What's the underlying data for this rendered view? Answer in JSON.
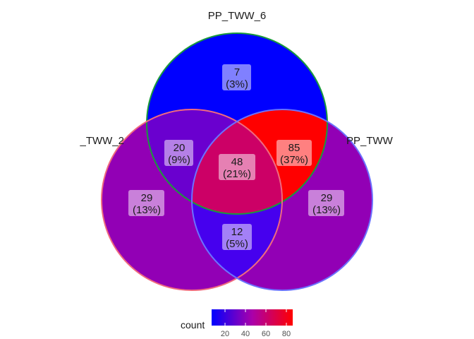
{
  "sets": [
    {
      "name": "PP_TWW_6",
      "label": "PP_TWW_6",
      "stroke": "#1a9a3c"
    },
    {
      "name": "_TWW_2",
      "label": "_TWW_2",
      "stroke": "#f06a7e"
    },
    {
      "name": "PP_TWW",
      "label": "PP_TWW",
      "stroke": "#6b72ff"
    }
  ],
  "regions": [
    {
      "id": "top-only",
      "count": "7",
      "percent": "(3%)",
      "value": 7,
      "color": "#0000ff"
    },
    {
      "id": "top-left",
      "count": "20",
      "percent": "(9%)",
      "value": 20,
      "color": "#6a00cf"
    },
    {
      "id": "top-right",
      "count": "85",
      "percent": "(37%)",
      "value": 85,
      "color": "#ff0000"
    },
    {
      "id": "center",
      "count": "48",
      "percent": "(21%)",
      "value": 48,
      "color": "#cc0066"
    },
    {
      "id": "left-only",
      "count": "29",
      "percent": "(13%)",
      "value": 29,
      "color": "#9200b5"
    },
    {
      "id": "right-only",
      "count": "29",
      "percent": "(13%)",
      "value": 29,
      "color": "#9200b5"
    },
    {
      "id": "bottom",
      "count": "12",
      "percent": "(5%)",
      "value": 12,
      "color": "#4600ee"
    }
  ],
  "legend": {
    "title": "count",
    "gradient_low": "#0000ff",
    "gradient_mid": "#aa00aa",
    "gradient_high": "#ff0000",
    "ticks": [
      "20",
      "40",
      "60",
      "80"
    ]
  }
}
